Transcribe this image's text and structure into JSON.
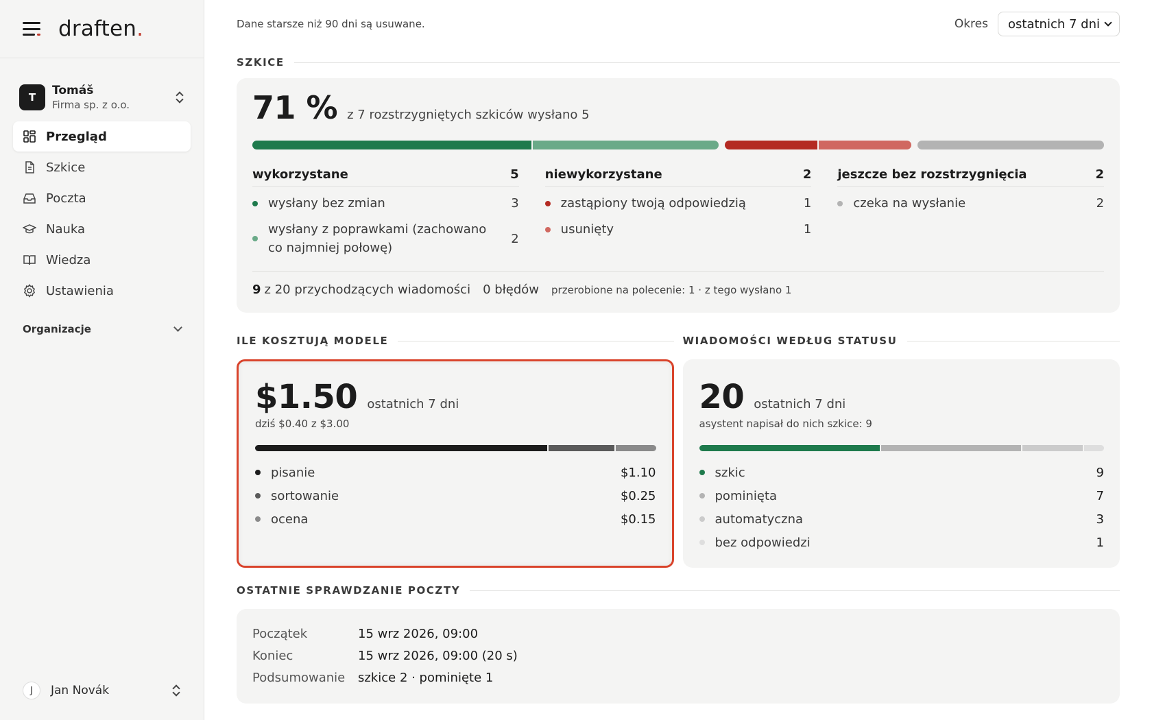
{
  "brand": {
    "logo_text": "draften",
    "logo_dot": "."
  },
  "account": {
    "initial": "T",
    "name": "Tomáš",
    "org": "Firma sp. z o.o."
  },
  "nav": [
    {
      "id": "przeglad",
      "label": "Przegląd",
      "icon": "grid-icon",
      "active": true
    },
    {
      "id": "szkice",
      "label": "Szkice",
      "icon": "document-icon"
    },
    {
      "id": "poczta",
      "label": "Poczta",
      "icon": "inbox-icon"
    },
    {
      "id": "nauka",
      "label": "Nauka",
      "icon": "graduation-cap-icon"
    },
    {
      "id": "wiedza",
      "label": "Wiedza",
      "icon": "book-icon"
    },
    {
      "id": "ustawienia",
      "label": "Ustawienia",
      "icon": "gear-icon"
    }
  ],
  "organizations": {
    "label": "Organizacje"
  },
  "user": {
    "initial": "J",
    "name": "Jan Novák"
  },
  "topbar": {
    "retention": "Dane starsze niż 90 dni są usuwane.",
    "period_label": "Okres",
    "period_value": "ostatnich 7 dni"
  },
  "drafts": {
    "section_title": "SZKICE",
    "percent": "71 %",
    "caption": "z 7 rozstrzygniętych szkiców wysłano 5",
    "bar": [
      {
        "group": "used",
        "parts": [
          {
            "value": 3,
            "color": "#1e7a4c"
          },
          {
            "value": 2,
            "color": "#6aaa88"
          }
        ]
      },
      {
        "group": "unused",
        "parts": [
          {
            "value": 1,
            "color": "#b42a22"
          },
          {
            "value": 1,
            "color": "#d06860"
          }
        ]
      },
      {
        "group": "pending",
        "parts": [
          {
            "value": 2,
            "color": "#b3b3b3"
          }
        ]
      }
    ],
    "columns": [
      {
        "title": "wykorzystane",
        "count": "5",
        "rows": [
          {
            "label": "wysłany bez zmian",
            "value": "3",
            "color": "#1e7a4c"
          },
          {
            "label": "wysłany z poprawkami (zachowano co najmniej połowę)",
            "value": "2",
            "color": "#6aaa88"
          }
        ]
      },
      {
        "title": "niewykorzystane",
        "count": "2",
        "rows": [
          {
            "label": "zastąpiony twoją odpowiedzią",
            "value": "1",
            "color": "#b42a22"
          },
          {
            "label": "usunięty",
            "value": "1",
            "color": "#d06860"
          }
        ]
      },
      {
        "title": "jeszcze bez rozstrzygnięcia",
        "count": "2",
        "rows": [
          {
            "label": "czeka na wysłanie",
            "value": "2",
            "color": "#b3b3b3"
          }
        ]
      }
    ],
    "footer": {
      "incoming_count": "9",
      "incoming_text": "z 20 przychodzących wiadomości",
      "errors": "0 błędów",
      "rework": "przerobione na polecenie: 1 · z tego wysłano 1"
    }
  },
  "costs": {
    "section_title": "ILE KOSZTUJĄ MODELE",
    "total": "$1.50",
    "period": "ostatnich 7 dni",
    "today": "dziś $0.40 z $3.00",
    "items": [
      {
        "label": "pisanie",
        "value": "$1.10",
        "amount": 1.1,
        "color": "#1c1c1c"
      },
      {
        "label": "sortowanie",
        "value": "$0.25",
        "amount": 0.25,
        "color": "#5a5a5a"
      },
      {
        "label": "ocena",
        "value": "$0.15",
        "amount": 0.15,
        "color": "#8a8a8a"
      }
    ]
  },
  "messages": {
    "section_title": "WIADOMOŚCI WEDŁUG STATUSU",
    "total": "20",
    "period": "ostatnich 7 dni",
    "subtitle": "asystent napisał do nich szkice: 9",
    "items": [
      {
        "label": "szkic",
        "value": "9",
        "amount": 9,
        "color": "#1e7a4c"
      },
      {
        "label": "pominięta",
        "value": "7",
        "amount": 7,
        "color": "#b3b3b3"
      },
      {
        "label": "automatyczna",
        "value": "3",
        "amount": 3,
        "color": "#cbcbcb"
      },
      {
        "label": "bez odpowiedzi",
        "value": "1",
        "amount": 1,
        "color": "#dedede"
      }
    ]
  },
  "last_check": {
    "section_title": "OSTATNIE SPRAWDZANIE POCZTY",
    "rows": [
      {
        "key": "Początek",
        "value": "15 wrz 2026, 09:00"
      },
      {
        "key": "Koniec",
        "value": "15 wrz 2026, 09:00 (20 s)"
      },
      {
        "key": "Podsumowanie",
        "value": "szkice 2 · pominięte 1"
      }
    ]
  }
}
